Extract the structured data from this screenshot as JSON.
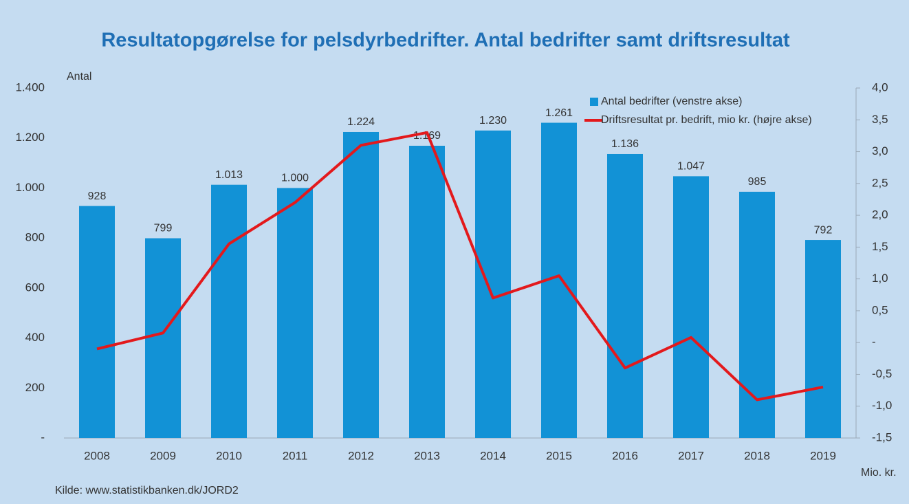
{
  "chart_data": {
    "type": "bar_line",
    "title": "Resultatopgørelse for pelsdyrbedrifter. Antal bedrifter samt driftsresultat",
    "y_label": "Antal",
    "y2_label": "Mio. kr.",
    "source": "Kilde: www.statistikbanken.dk/JORD2",
    "categories": [
      "2008",
      "2009",
      "2010",
      "2011",
      "2012",
      "2013",
      "2014",
      "2015",
      "2016",
      "2017",
      "2018",
      "2019"
    ],
    "series": [
      {
        "name": "Antal bedrifter (venstre akse)",
        "color": "#1292d6",
        "type": "bar",
        "axis": "y",
        "values": [
          928,
          799,
          1013,
          1000,
          1224,
          1169,
          1230,
          1261,
          1136,
          1047,
          985,
          792
        ],
        "value_labels": [
          "928",
          "799",
          "1.013",
          "1.000",
          "1.224",
          "1.169",
          "1.230",
          "1.261",
          "1.136",
          "1.047",
          "985",
          "792"
        ]
      },
      {
        "name": "Driftsresultat pr. bedrift, mio kr. (højre akse)",
        "color": "#e3191c",
        "type": "line",
        "axis": "y2",
        "values": [
          -0.1,
          0.15,
          1.55,
          2.2,
          3.1,
          3.3,
          0.7,
          1.05,
          -0.4,
          0.08,
          -0.9,
          -0.7
        ]
      }
    ],
    "ylim": [
      0,
      1400
    ],
    "yticks": [
      {
        "value": 0,
        "label": "-"
      },
      200,
      400,
      600,
      800,
      {
        "value": 1000,
        "label": "1.000"
      },
      {
        "value": 1200,
        "label": "1.200"
      },
      {
        "value": 1400,
        "label": "1.400"
      }
    ],
    "y2lim": [
      -1.5,
      4.0
    ],
    "y2ticks": [
      {
        "value": -1.5,
        "label": "-1,5"
      },
      {
        "value": -1.0,
        "label": "-1,0"
      },
      {
        "value": -0.5,
        "label": "-0,5"
      },
      {
        "value": 0,
        "label": "-"
      },
      {
        "value": 0.5,
        "label": "0,5"
      },
      {
        "value": 1.0,
        "label": "1,0"
      },
      {
        "value": 1.5,
        "label": "1,5"
      },
      {
        "value": 2.0,
        "label": "2,0"
      },
      {
        "value": 2.5,
        "label": "2,5"
      },
      {
        "value": 3.0,
        "label": "3,0"
      },
      {
        "value": 3.5,
        "label": "3,5"
      },
      {
        "value": 4.0,
        "label": "4,0"
      }
    ],
    "legend": "upper-right"
  }
}
